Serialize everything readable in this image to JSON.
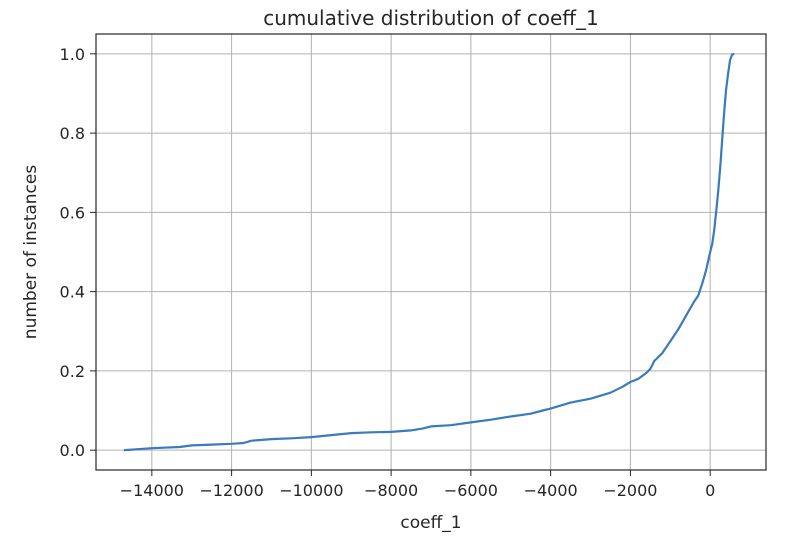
{
  "chart_data": {
    "type": "line",
    "title": "cumulative distribution of coeff_1",
    "xlabel": "coeff_1",
    "ylabel": "number of instances",
    "xlim": [
      -15400,
      1400
    ],
    "ylim": [
      -0.05,
      1.05
    ],
    "grid": true,
    "legend": "none",
    "x_ticks": [
      -14000,
      -12000,
      -10000,
      -8000,
      -6000,
      -4000,
      -2000,
      0
    ],
    "x_tick_labels": [
      "−14000",
      "−12000",
      "−10000",
      "−8000",
      "−6000",
      "−4000",
      "−2000",
      "0"
    ],
    "y_ticks": [
      0.0,
      0.2,
      0.4,
      0.6,
      0.8,
      1.0
    ],
    "y_tick_labels": [
      "0.0",
      "0.2",
      "0.4",
      "0.6",
      "0.8",
      "1.0"
    ],
    "series": [
      {
        "color": "#3a7abf",
        "x": [
          -14700,
          -14000,
          -13300,
          -13000,
          -12500,
          -12000,
          -11700,
          -11500,
          -11000,
          -10500,
          -10000,
          -9500,
          -9000,
          -8500,
          -8000,
          -7500,
          -7200,
          -7000,
          -6500,
          -6000,
          -5500,
          -5000,
          -4500,
          -4200,
          -4000,
          -3500,
          -3000,
          -2500,
          -2200,
          -2000,
          -1800,
          -1600,
          -1500,
          -1400,
          -1200,
          -1000,
          -800,
          -600,
          -400,
          -300,
          -200,
          -100,
          0,
          50,
          100,
          150,
          200,
          250,
          300,
          350,
          400,
          450,
          500,
          550,
          600
        ],
        "y": [
          0.0,
          0.005,
          0.008,
          0.012,
          0.014,
          0.016,
          0.018,
          0.024,
          0.028,
          0.03,
          0.033,
          0.038,
          0.043,
          0.045,
          0.046,
          0.05,
          0.055,
          0.06,
          0.063,
          0.07,
          0.077,
          0.085,
          0.092,
          0.1,
          0.105,
          0.12,
          0.13,
          0.145,
          0.16,
          0.172,
          0.18,
          0.195,
          0.205,
          0.225,
          0.245,
          0.275,
          0.305,
          0.34,
          0.375,
          0.39,
          0.42,
          0.455,
          0.5,
          0.52,
          0.555,
          0.6,
          0.65,
          0.71,
          0.78,
          0.85,
          0.91,
          0.95,
          0.985,
          0.998,
          1.0
        ]
      }
    ]
  }
}
